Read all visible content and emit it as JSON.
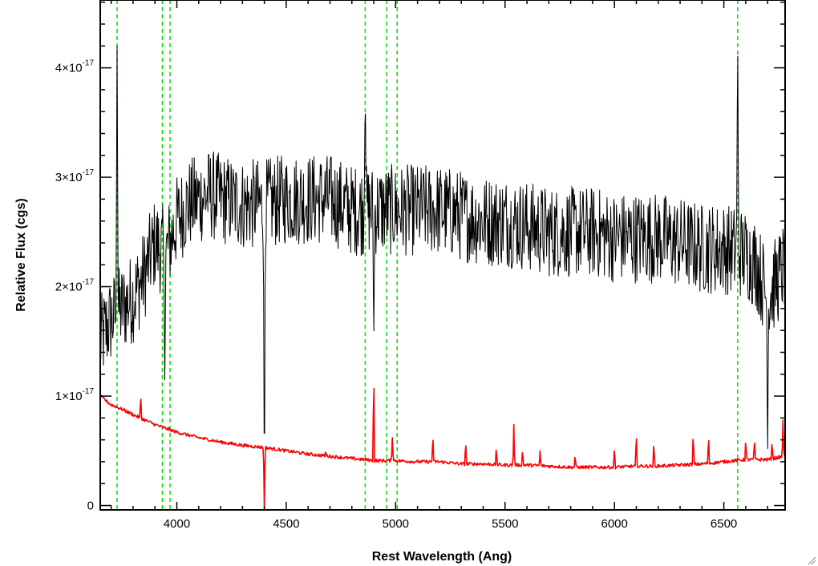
{
  "chart_data": {
    "type": "line",
    "title": "",
    "xlabel": "Rest Wavelength (Ang)",
    "ylabel": "Relative Flux (cgs)",
    "xlim": [
      3650,
      6780
    ],
    "ylim": [
      -4e-19,
      4.62e-17
    ],
    "x_ticks": [
      {
        "value": 4000,
        "label": "4000"
      },
      {
        "value": 4500,
        "label": "4500"
      },
      {
        "value": 5000,
        "label": "5000"
      },
      {
        "value": 5500,
        "label": "5500"
      },
      {
        "value": 6000,
        "label": "6000"
      },
      {
        "value": 6500,
        "label": "6500"
      }
    ],
    "y_ticks": [
      {
        "value": 0,
        "mantissa": "0",
        "exponent": ""
      },
      {
        "value": 1e-17,
        "mantissa": "1×10",
        "exponent": "-17"
      },
      {
        "value": 2e-17,
        "mantissa": "2×10",
        "exponent": "-17"
      },
      {
        "value": 3e-17,
        "mantissa": "3×10",
        "exponent": "-17"
      },
      {
        "value": 4e-17,
        "mantissa": "4×10",
        "exponent": "-17"
      }
    ],
    "grid": false,
    "legend": "none",
    "vertical_markers": [
      3727,
      3934,
      3969,
      4861,
      4959,
      5007,
      6563
    ],
    "series": [
      {
        "color": "#000000",
        "style": "noisy",
        "x": [
          3650,
          3700,
          3750,
          3800,
          3850,
          3900,
          3950,
          4000,
          4050,
          4100,
          4150,
          4200,
          4300,
          4400,
          4500,
          4600,
          4700,
          4800,
          4900,
          5000,
          5100,
          5200,
          5300,
          5400,
          5500,
          5600,
          5700,
          5800,
          5900,
          6000,
          6100,
          6200,
          6300,
          6400,
          6500,
          6600,
          6650,
          6700,
          6780
        ],
        "y": [
          1.5e-17,
          1.7e-17,
          1.8e-17,
          1.9e-17,
          2.1e-17,
          2.4e-17,
          2.3e-17,
          2.6e-17,
          2.75e-17,
          2.8e-17,
          2.85e-17,
          2.8e-17,
          2.75e-17,
          2.75e-17,
          2.8e-17,
          2.8e-17,
          2.8e-17,
          2.7e-17,
          2.7e-17,
          2.7e-17,
          2.7e-17,
          2.7e-17,
          2.65e-17,
          2.6e-17,
          2.6e-17,
          2.55e-17,
          2.5e-17,
          2.5e-17,
          2.5e-17,
          2.45e-17,
          2.45e-17,
          2.45e-17,
          2.4e-17,
          2.35e-17,
          2.35e-17,
          2.3e-17,
          2.2e-17,
          1.9e-17,
          2.2e-17
        ],
        "spikes": [
          {
            "x": 3727,
            "y": 4.3e-17
          },
          {
            "x": 3945,
            "y": 1.1e-17
          },
          {
            "x": 4400,
            "y": 0.0
          },
          {
            "x": 4861,
            "y": 3.8e-17
          },
          {
            "x": 4900,
            "y": 1.5e-17
          },
          {
            "x": 6563,
            "y": 4.35e-17
          },
          {
            "x": 6700,
            "y": 4e-18
          }
        ]
      },
      {
        "color": "#ff0000",
        "style": "model",
        "x": [
          3650,
          3700,
          3750,
          3800,
          3900,
          4000,
          4100,
          4200,
          4300,
          4400,
          4500,
          4600,
          4700,
          4800,
          4900,
          5000,
          5100,
          5200,
          5300,
          5400,
          5500,
          5600,
          5700,
          5800,
          5900,
          6000,
          6100,
          6200,
          6300,
          6400,
          6500,
          6600,
          6700,
          6780
        ],
        "y": [
          1e-17,
          9.2e-18,
          8.8e-18,
          8.3e-18,
          7.4e-18,
          6.7e-18,
          6.2e-18,
          5.8e-18,
          5.5e-18,
          5.3e-18,
          5e-18,
          4.7e-18,
          4.5e-18,
          4.3e-18,
          4.1e-18,
          4.1e-18,
          4e-18,
          4e-18,
          3.8e-18,
          3.8e-18,
          3.7e-18,
          3.7e-18,
          3.6e-18,
          3.5e-18,
          3.5e-18,
          3.5e-18,
          3.6e-18,
          3.6e-18,
          3.7e-18,
          3.8e-18,
          4e-18,
          4.2e-18,
          4.2e-18,
          4.5e-18
        ],
        "spikes": [
          {
            "x": 3835,
            "y": 1.03e-17
          },
          {
            "x": 4400,
            "y": -4e-19
          },
          {
            "x": 4680,
            "y": 5e-18
          },
          {
            "x": 4900,
            "y": 1.29e-17
          },
          {
            "x": 4985,
            "y": 6.2e-18
          },
          {
            "x": 5170,
            "y": 6.6e-18
          },
          {
            "x": 5320,
            "y": 6e-18
          },
          {
            "x": 5460,
            "y": 5.5e-18
          },
          {
            "x": 5540,
            "y": 7.4e-18
          },
          {
            "x": 5580,
            "y": 5.2e-18
          },
          {
            "x": 5660,
            "y": 5e-18
          },
          {
            "x": 5820,
            "y": 4.7e-18
          },
          {
            "x": 6000,
            "y": 5.5e-18
          },
          {
            "x": 6100,
            "y": 6.9e-18
          },
          {
            "x": 6180,
            "y": 6e-18
          },
          {
            "x": 6360,
            "y": 6.8e-18
          },
          {
            "x": 6430,
            "y": 6.6e-18
          },
          {
            "x": 6600,
            "y": 6.2e-18
          },
          {
            "x": 6640,
            "y": 6.2e-18
          },
          {
            "x": 6720,
            "y": 6e-18
          },
          {
            "x": 6770,
            "y": 7.8e-18
          }
        ]
      }
    ]
  }
}
